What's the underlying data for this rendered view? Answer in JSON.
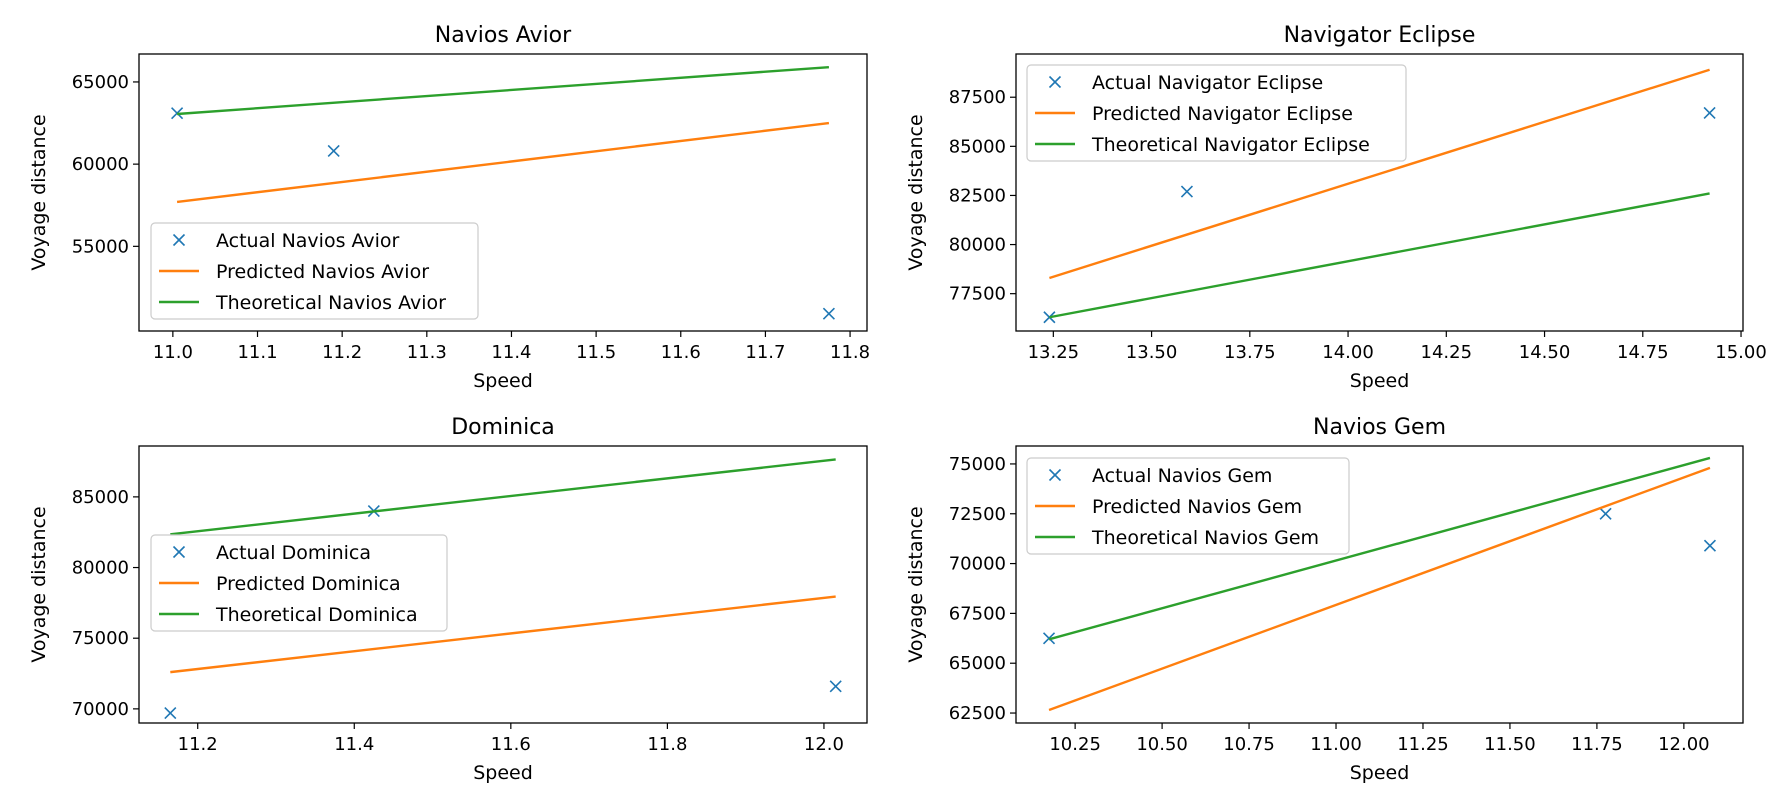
{
  "chart_data": [
    {
      "type": "line",
      "title": "Navios Avior",
      "xlabel": "Speed",
      "ylabel": "Voyage distance",
      "xlim": [
        10.96,
        11.82
      ],
      "ylim": [
        49850,
        66700
      ],
      "xticks": [
        11.0,
        11.1,
        11.2,
        11.3,
        11.4,
        11.5,
        11.6,
        11.7,
        11.8
      ],
      "xtick_labels": [
        "11.0",
        "11.1",
        "11.2",
        "11.3",
        "11.4",
        "11.5",
        "11.6",
        "11.7",
        "11.8"
      ],
      "yticks": [
        55000,
        60000,
        65000
      ],
      "ytick_labels": [
        "55000",
        "60000",
        "65000"
      ],
      "legend_position": "lower-left",
      "series": [
        {
          "name": "Actual Navios Avior",
          "kind": "scatter",
          "color": "#1f77b4",
          "x": [
            11.005,
            11.19,
            11.775
          ],
          "y": [
            63100,
            60800,
            50900
          ]
        },
        {
          "name": "Predicted Navios Avior",
          "kind": "line",
          "color": "#ff7f0e",
          "x": [
            11.005,
            11.775
          ],
          "y": [
            57700,
            62500
          ]
        },
        {
          "name": "Theoretical Navios Avior",
          "kind": "line",
          "color": "#2ca02c",
          "x": [
            11.005,
            11.775
          ],
          "y": [
            63050,
            65900
          ]
        }
      ]
    },
    {
      "type": "line",
      "title": "Navigator Eclipse",
      "xlabel": "Speed",
      "ylabel": "Voyage distance",
      "xlim": [
        13.155,
        15.005
      ],
      "ylim": [
        75600,
        89700
      ],
      "xticks": [
        13.25,
        13.5,
        13.75,
        14.0,
        14.25,
        14.5,
        14.75,
        15.0
      ],
      "xtick_labels": [
        "13.25",
        "13.50",
        "13.75",
        "14.00",
        "14.25",
        "14.50",
        "14.75",
        "15.00"
      ],
      "yticks": [
        77500,
        80000,
        82500,
        85000,
        87500
      ],
      "ytick_labels": [
        "77500",
        "80000",
        "82500",
        "85000",
        "87500"
      ],
      "legend_position": "upper-left",
      "series": [
        {
          "name": "Actual Navigator Eclipse",
          "kind": "scatter",
          "color": "#1f77b4",
          "x": [
            13.24,
            13.59,
            14.92
          ],
          "y": [
            76300,
            82700,
            86700
          ]
        },
        {
          "name": "Predicted Navigator Eclipse",
          "kind": "line",
          "color": "#ff7f0e",
          "x": [
            13.24,
            14.92
          ],
          "y": [
            78300,
            88900
          ]
        },
        {
          "name": "Theoretical Navigator Eclipse",
          "kind": "line",
          "color": "#2ca02c",
          "x": [
            13.24,
            14.92
          ],
          "y": [
            76300,
            82600
          ]
        }
      ]
    },
    {
      "type": "line",
      "title": "Dominica",
      "xlabel": "Speed",
      "ylabel": "Voyage distance",
      "xlim": [
        11.125,
        12.055
      ],
      "ylim": [
        69000,
        88600
      ],
      "xticks": [
        11.2,
        11.4,
        11.6,
        11.8,
        12.0
      ],
      "xtick_labels": [
        "11.2",
        "11.4",
        "11.6",
        "11.8",
        "12.0"
      ],
      "yticks": [
        70000,
        75000,
        80000,
        85000
      ],
      "ytick_labels": [
        "70000",
        "75000",
        "80000",
        "85000"
      ],
      "legend_position": "center-left",
      "series": [
        {
          "name": "Actual Dominica",
          "kind": "scatter",
          "color": "#1f77b4",
          "x": [
            11.165,
            11.425,
            12.015
          ],
          "y": [
            69700,
            84000,
            71600
          ]
        },
        {
          "name": "Predicted Dominica",
          "kind": "line",
          "color": "#ff7f0e",
          "x": [
            11.165,
            12.015
          ],
          "y": [
            72600,
            77950
          ]
        },
        {
          "name": "Theoretical Dominica",
          "kind": "line",
          "color": "#2ca02c",
          "x": [
            11.165,
            12.015
          ],
          "y": [
            82350,
            87650
          ]
        }
      ]
    },
    {
      "type": "line",
      "title": "Navios Gem",
      "xlabel": "Speed",
      "ylabel": "Voyage distance",
      "xlim": [
        10.08,
        12.17
      ],
      "ylim": [
        62000,
        75900
      ],
      "xticks": [
        10.25,
        10.5,
        10.75,
        11.0,
        11.25,
        11.5,
        11.75,
        12.0
      ],
      "xtick_labels": [
        "10.25",
        "10.50",
        "10.75",
        "11.00",
        "11.25",
        "11.50",
        "11.75",
        "12.00"
      ],
      "yticks": [
        62500,
        65000,
        67500,
        70000,
        72500,
        75000
      ],
      "ytick_labels": [
        "62500",
        "65000",
        "67500",
        "70000",
        "72500",
        "75000"
      ],
      "legend_position": "upper-left",
      "series": [
        {
          "name": "Actual Navios Gem",
          "kind": "scatter",
          "color": "#1f77b4",
          "x": [
            10.175,
            11.775,
            12.075
          ],
          "y": [
            66250,
            72500,
            70900
          ]
        },
        {
          "name": "Predicted Navios Gem",
          "kind": "line",
          "color": "#ff7f0e",
          "x": [
            10.175,
            12.075
          ],
          "y": [
            62650,
            74800
          ]
        },
        {
          "name": "Theoretical Navios Gem",
          "kind": "line",
          "color": "#2ca02c",
          "x": [
            10.175,
            12.075
          ],
          "y": [
            66200,
            75300
          ]
        }
      ]
    }
  ]
}
